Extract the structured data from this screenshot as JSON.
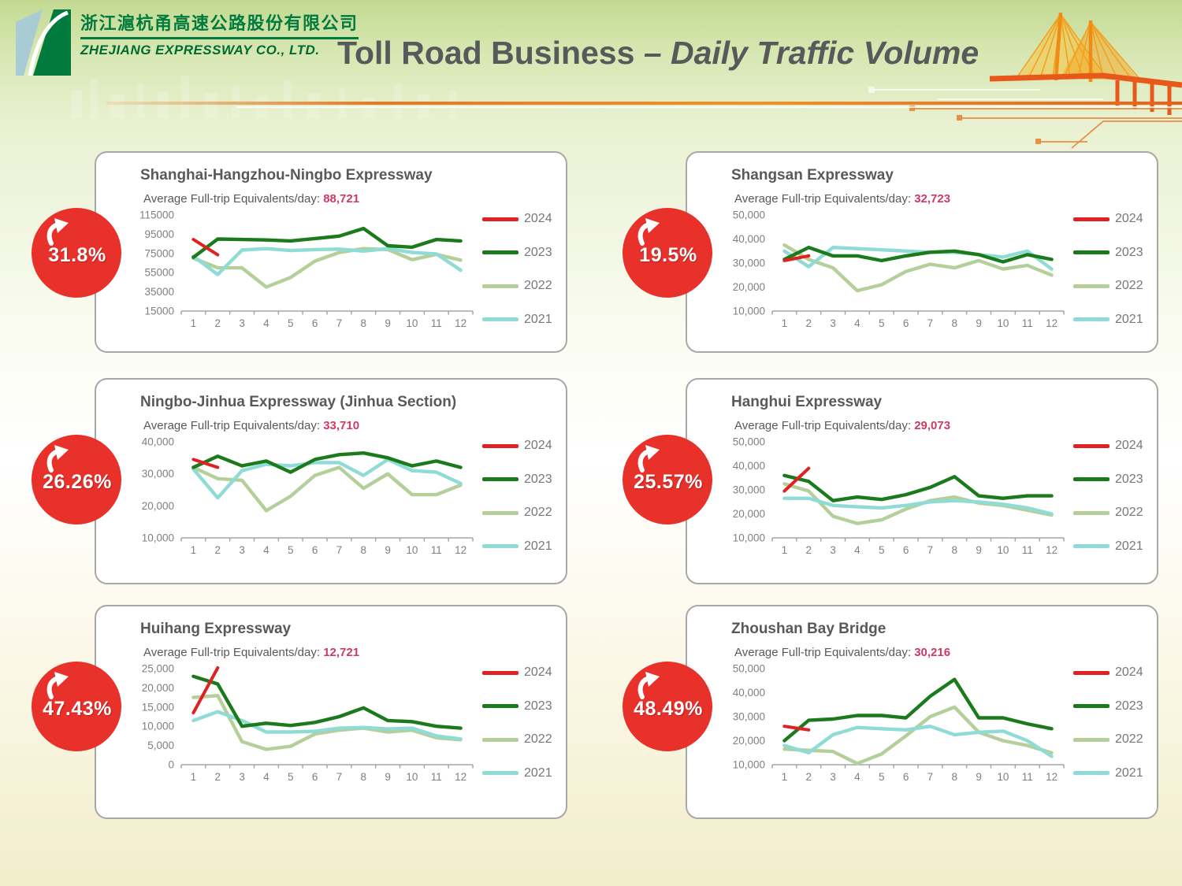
{
  "header": {
    "company_cn": "浙江滬杭甬高速公路股份有限公司",
    "company_en": "ZHEJIANG EXPRESSWAY CO., LTD.",
    "title_main": "Toll Road Business ",
    "title_sub": "– Daily Traffic Volume"
  },
  "colors": {
    "year_2024": "#df2121",
    "year_2023": "#1b7a1b",
    "year_2022": "#b5cf9a",
    "year_2021": "#8fdbd6",
    "badge_red": "#e8312b",
    "avg_number": "#cf3a64",
    "title_gray": "#595959",
    "header_orange": "#e87722"
  },
  "panels": [
    {
      "title": "Shanghai-Hangzhou-Ningbo Expressway",
      "avg_label": "Average Full-trip Equivalents/day:",
      "avg_value": "88,721",
      "growth": "31.8%"
    },
    {
      "title": "Shangsan Expressway",
      "avg_label": "Average Full-trip Equivalents/day:",
      "avg_value": "32,723",
      "growth": "19.5%"
    },
    {
      "title": "Ningbo-Jinhua Expressway (Jinhua Section)",
      "avg_label": "Average Full-trip Equivalents/day:",
      "avg_value": "33,710",
      "growth": "26.26%"
    },
    {
      "title": "Hanghui Expressway",
      "avg_label": "Average Full-trip Equivalents/day:",
      "avg_value": "29,073",
      "growth": "25.57%"
    },
    {
      "title": "Huihang Expressway",
      "avg_label": "Average Full-trip Equivalents/day:",
      "avg_value": "12,721",
      "growth": "47.43%"
    },
    {
      "title": "Zhoushan Bay Bridge",
      "avg_label": "Average Full-trip Equivalents/day:",
      "avg_value": "30,216",
      "growth": "48.49%"
    }
  ],
  "chart_data": [
    {
      "type": "line",
      "title": "Shanghai-Hangzhou-Ningbo Expressway daily traffic by month",
      "x": [
        1,
        2,
        3,
        4,
        5,
        6,
        7,
        8,
        9,
        10,
        11,
        12
      ],
      "x_labels": [
        "1",
        "2",
        "3",
        "4",
        "5",
        "6",
        "7",
        "8",
        "9",
        "10",
        "11",
        "12"
      ],
      "ylim": [
        15000,
        115000
      ],
      "ytick_values": [
        115000,
        95000,
        75000,
        55000,
        35000,
        15000
      ],
      "ytick_labels": [
        "115000",
        "95000",
        "75000",
        "55000",
        "35000",
        "15000"
      ],
      "grid": false,
      "legend_position": "right",
      "series": [
        {
          "name": "2024",
          "color": "#df2121",
          "values": [
            89500,
            73500
          ]
        },
        {
          "name": "2023",
          "color": "#1b7a1b",
          "values": [
            71000,
            90000,
            89500,
            89000,
            88000,
            90500,
            93000,
            101000,
            83000,
            81500,
            89500,
            88000
          ]
        },
        {
          "name": "2022",
          "color": "#b5cf9a",
          "values": [
            70000,
            60000,
            60000,
            40000,
            50000,
            67000,
            76000,
            80000,
            79000,
            68500,
            74000,
            68000
          ]
        },
        {
          "name": "2021",
          "color": "#8fdbd6",
          "values": [
            72000,
            53000,
            78500,
            80000,
            78000,
            79000,
            79500,
            77500,
            80000,
            76000,
            74500,
            57500
          ]
        }
      ]
    },
    {
      "type": "line",
      "title": "Shangsan Expressway daily traffic by month",
      "x": [
        1,
        2,
        3,
        4,
        5,
        6,
        7,
        8,
        9,
        10,
        11,
        12
      ],
      "x_labels": [
        "1",
        "2",
        "3",
        "4",
        "5",
        "6",
        "7",
        "8",
        "9",
        "10",
        "11",
        "12"
      ],
      "ylim": [
        10000,
        50000
      ],
      "ytick_values": [
        50000,
        40000,
        30000,
        20000,
        10000
      ],
      "ytick_labels": [
        "50,000",
        "40,000",
        "30,000",
        "20,000",
        "10,000"
      ],
      "grid": false,
      "legend_position": "right",
      "series": [
        {
          "name": "2024",
          "color": "#df2121",
          "values": [
            31000,
            33000
          ]
        },
        {
          "name": "2023",
          "color": "#1b7a1b",
          "values": [
            31500,
            36500,
            33000,
            33000,
            31000,
            33000,
            34500,
            35000,
            33500,
            30500,
            33500,
            31500
          ]
        },
        {
          "name": "2022",
          "color": "#b5cf9a",
          "values": [
            37500,
            31500,
            28000,
            18500,
            21000,
            26500,
            29500,
            28000,
            31000,
            27500,
            29000,
            25000
          ]
        },
        {
          "name": "2021",
          "color": "#8fdbd6",
          "values": [
            35000,
            28500,
            36500,
            36000,
            35500,
            35000,
            34500,
            34500,
            33500,
            32500,
            35000,
            27500
          ]
        }
      ]
    },
    {
      "type": "line",
      "title": "Ningbo-Jinhua Expressway (Jinhua Section) daily traffic by month",
      "x": [
        1,
        2,
        3,
        4,
        5,
        6,
        7,
        8,
        9,
        10,
        11,
        12
      ],
      "x_labels": [
        "1",
        "2",
        "3",
        "4",
        "5",
        "6",
        "7",
        "8",
        "9",
        "10",
        "11",
        "12"
      ],
      "ylim": [
        10000,
        40000
      ],
      "ytick_values": [
        40000,
        30000,
        20000,
        10000
      ],
      "ytick_labels": [
        "40,000",
        "30,000",
        "20,000",
        "10,000"
      ],
      "grid": false,
      "legend_position": "right",
      "series": [
        {
          "name": "2024",
          "color": "#df2121",
          "values": [
            34500,
            32000
          ]
        },
        {
          "name": "2023",
          "color": "#1b7a1b",
          "values": [
            32000,
            35500,
            32500,
            34000,
            30500,
            34500,
            36000,
            36500,
            35000,
            32500,
            34000,
            32000
          ]
        },
        {
          "name": "2022",
          "color": "#b5cf9a",
          "values": [
            32000,
            28500,
            28000,
            18500,
            23000,
            29500,
            32000,
            25500,
            30000,
            23500,
            23500,
            26500
          ]
        },
        {
          "name": "2021",
          "color": "#8fdbd6",
          "values": [
            31500,
            22500,
            31000,
            33000,
            32500,
            33500,
            33500,
            29500,
            34500,
            31000,
            30500,
            27000
          ]
        }
      ]
    },
    {
      "type": "line",
      "title": "Hanghui Expressway daily traffic by month",
      "x": [
        1,
        2,
        3,
        4,
        5,
        6,
        7,
        8,
        9,
        10,
        11,
        12
      ],
      "x_labels": [
        "1",
        "2",
        "3",
        "4",
        "5",
        "6",
        "7",
        "8",
        "9",
        "10",
        "11",
        "12"
      ],
      "ylim": [
        10000,
        50000
      ],
      "ytick_values": [
        50000,
        40000,
        30000,
        20000,
        10000
      ],
      "ytick_labels": [
        "50,000",
        "40,000",
        "30,000",
        "20,000",
        "10,000"
      ],
      "grid": false,
      "legend_position": "right",
      "series": [
        {
          "name": "2024",
          "color": "#df2121",
          "values": [
            29500,
            39000
          ]
        },
        {
          "name": "2023",
          "color": "#1b7a1b",
          "values": [
            36000,
            33500,
            25500,
            27000,
            26000,
            28000,
            31000,
            35500,
            27500,
            26500,
            27500,
            27500
          ]
        },
        {
          "name": "2022",
          "color": "#b5cf9a",
          "values": [
            32500,
            29500,
            19000,
            16000,
            17500,
            22000,
            25500,
            27000,
            24500,
            23500,
            21500,
            19500
          ]
        },
        {
          "name": "2021",
          "color": "#8fdbd6",
          "values": [
            26500,
            26500,
            23500,
            23000,
            22500,
            23500,
            25000,
            25500,
            25000,
            24000,
            22500,
            20000
          ]
        }
      ]
    },
    {
      "type": "line",
      "title": "Huihang Expressway daily traffic by month",
      "x": [
        1,
        2,
        3,
        4,
        5,
        6,
        7,
        8,
        9,
        10,
        11,
        12
      ],
      "x_labels": [
        "1",
        "2",
        "3",
        "4",
        "5",
        "6",
        "7",
        "8",
        "9",
        "10",
        "11",
        "12"
      ],
      "ylim": [
        0,
        25000
      ],
      "ytick_values": [
        25000,
        20000,
        15000,
        10000,
        5000,
        0
      ],
      "ytick_labels": [
        "25,000",
        "20,000",
        "15,000",
        "10,000",
        "5,000",
        "0"
      ],
      "grid": false,
      "legend_position": "right",
      "series": [
        {
          "name": "2024",
          "color": "#df2121",
          "values": [
            13500,
            25200
          ]
        },
        {
          "name": "2023",
          "color": "#1b7a1b",
          "values": [
            23000,
            21000,
            10000,
            10800,
            10200,
            11000,
            12500,
            14800,
            11500,
            11200,
            10000,
            9500
          ]
        },
        {
          "name": "2022",
          "color": "#b5cf9a",
          "values": [
            17500,
            18000,
            6000,
            4000,
            4800,
            8000,
            9000,
            9500,
            8500,
            9000,
            7000,
            6500
          ]
        },
        {
          "name": "2021",
          "color": "#8fdbd6",
          "values": [
            11500,
            13800,
            11500,
            8500,
            8500,
            8700,
            9500,
            9700,
            9300,
            9500,
            7500,
            6700
          ]
        }
      ]
    },
    {
      "type": "line",
      "title": "Zhoushan Bay Bridge daily traffic by month",
      "x": [
        1,
        2,
        3,
        4,
        5,
        6,
        7,
        8,
        9,
        10,
        11,
        12
      ],
      "x_labels": [
        "1",
        "2",
        "3",
        "4",
        "5",
        "6",
        "7",
        "8",
        "9",
        "10",
        "11",
        "12"
      ],
      "ylim": [
        10000,
        50000
      ],
      "ytick_values": [
        50000,
        40000,
        30000,
        20000,
        10000
      ],
      "ytick_labels": [
        "50,000",
        "40,000",
        "30,000",
        "20,000",
        "10,000"
      ],
      "grid": false,
      "legend_position": "right",
      "series": [
        {
          "name": "2024",
          "color": "#df2121",
          "values": [
            26000,
            24500
          ]
        },
        {
          "name": "2023",
          "color": "#1b7a1b",
          "values": [
            20000,
            28500,
            29000,
            30500,
            30500,
            29500,
            38500,
            45500,
            29500,
            29500,
            27000,
            25000
          ]
        },
        {
          "name": "2022",
          "color": "#b5cf9a",
          "values": [
            16500,
            16000,
            15500,
            10500,
            14500,
            22000,
            30000,
            34000,
            23500,
            20000,
            18000,
            15000
          ]
        },
        {
          "name": "2021",
          "color": "#8fdbd6",
          "values": [
            18000,
            15000,
            22500,
            25500,
            25000,
            24500,
            26000,
            22500,
            23500,
            24000,
            20000,
            13500
          ]
        }
      ]
    }
  ]
}
